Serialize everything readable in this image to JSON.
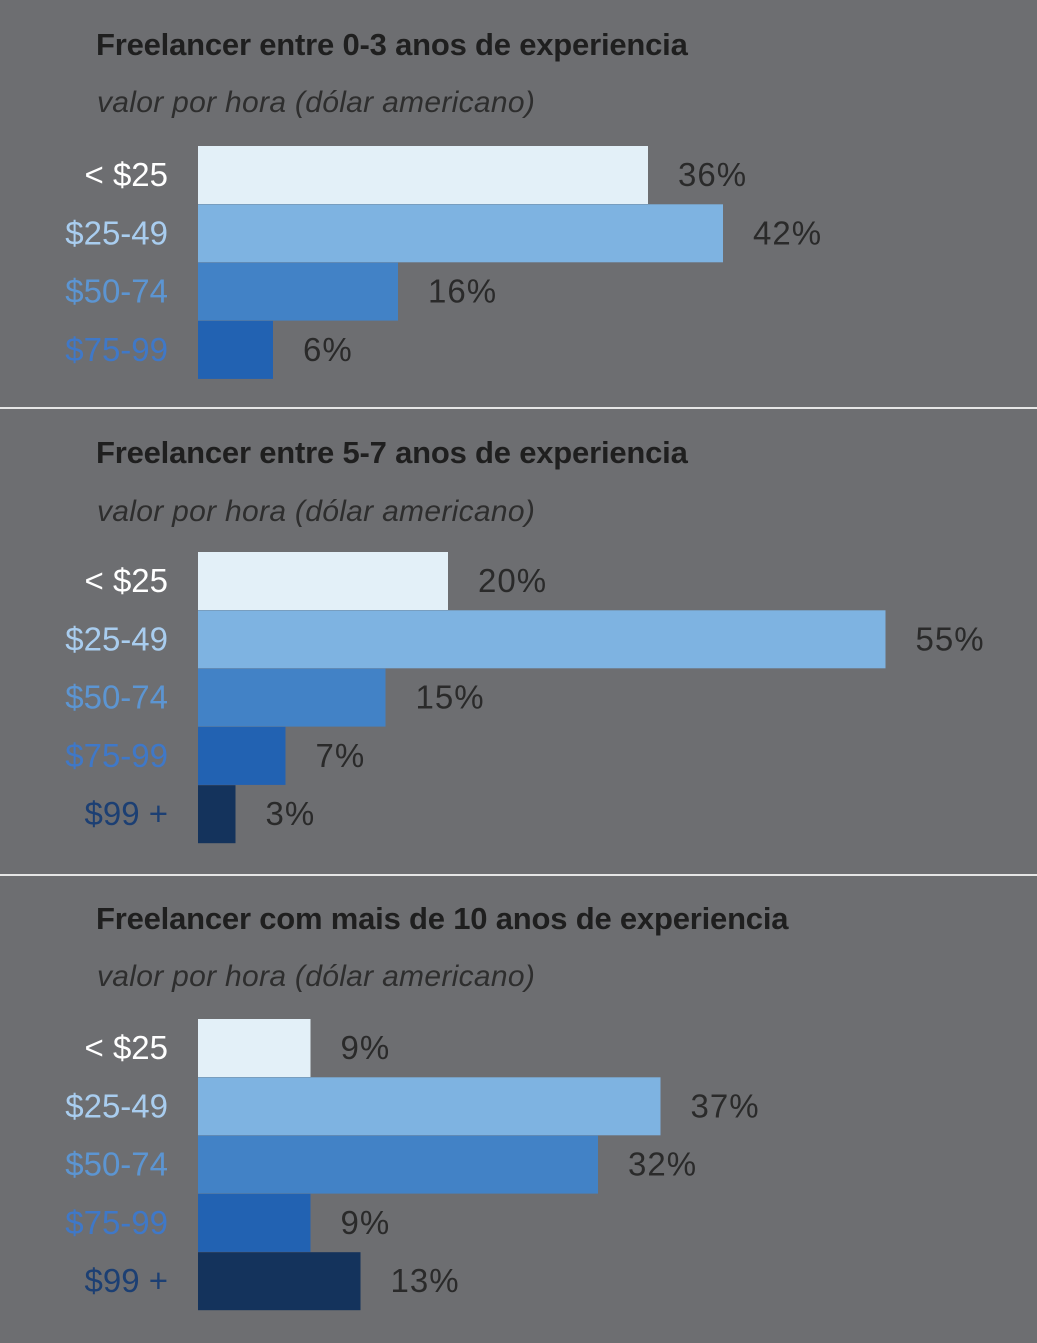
{
  "colors": {
    "background": "#6d6e71",
    "divider": "#e6e6e6",
    "bar_lt25": "#e3f0f8",
    "bar_25_49": "#7eb3e1",
    "bar_50_74": "#4282c6",
    "bar_75_99": "#2262b2",
    "bar_99plus": "#14335c",
    "value_label": "#2a2a2a"
  },
  "chart_data": [
    {
      "type": "bar",
      "orientation": "horizontal",
      "title": "Freelancer entre 0-3 anos de experiencia",
      "subtitle": "valor por hora (dólar americano)",
      "categories": [
        "< $25",
        "$25-49",
        "$50-74",
        "$75-99"
      ],
      "values": [
        36,
        42,
        16,
        6
      ],
      "value_labels": [
        "36%",
        "42%",
        "16%",
        "6%"
      ],
      "xlim": [
        0,
        55
      ],
      "unit": "%"
    },
    {
      "type": "bar",
      "orientation": "horizontal",
      "title": "Freelancer entre 5-7 anos de experiencia",
      "subtitle": "valor por hora (dólar americano)",
      "categories": [
        "< $25",
        "$25-49",
        "$50-74",
        "$75-99",
        "$99 +"
      ],
      "values": [
        20,
        55,
        15,
        7,
        3
      ],
      "value_labels": [
        "20%",
        "55%",
        "15%",
        "7%",
        "3%"
      ],
      "xlim": [
        0,
        55
      ],
      "unit": "%"
    },
    {
      "type": "bar",
      "orientation": "horizontal",
      "title": "Freelancer com mais de 10 anos de experiencia",
      "subtitle": "valor por hora (dólar americano)",
      "categories": [
        "< $25",
        "$25-49",
        "$50-74",
        "$75-99",
        "$99 +"
      ],
      "values": [
        9,
        37,
        32,
        9,
        13
      ],
      "value_labels": [
        "9%",
        "37%",
        "32%",
        "9%",
        "13%"
      ],
      "xlim": [
        0,
        55
      ],
      "unit": "%"
    }
  ]
}
